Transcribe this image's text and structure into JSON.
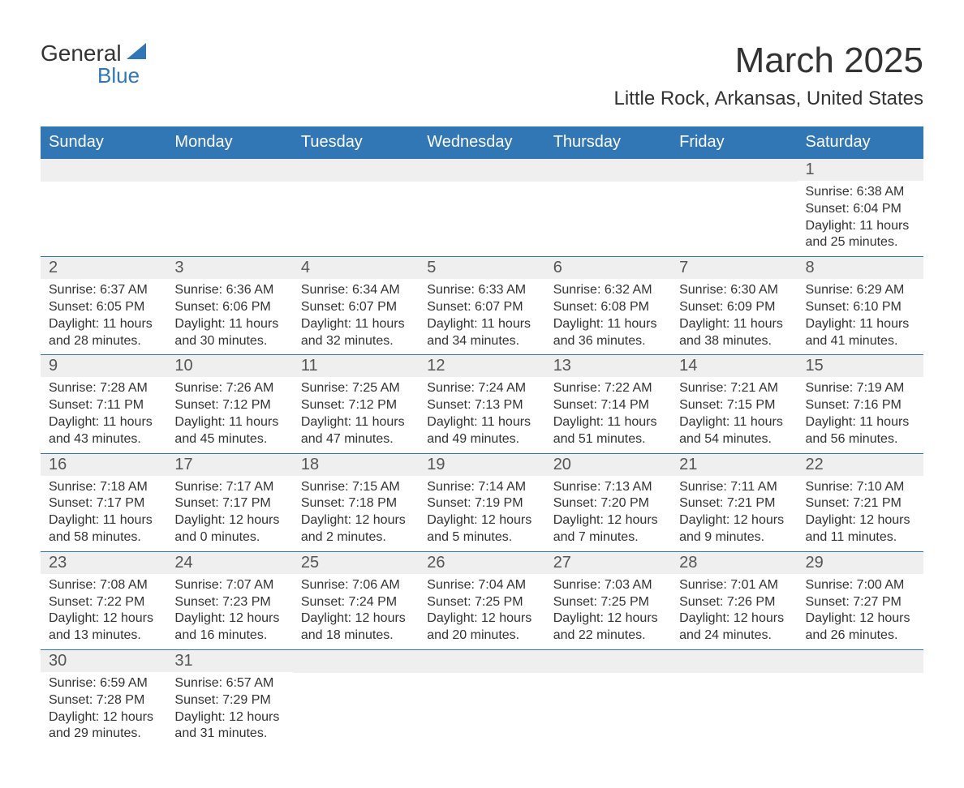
{
  "logo": {
    "text1": "General",
    "text2": "Blue"
  },
  "title": "March 2025",
  "location": "Little Rock, Arkansas, United States",
  "colors": {
    "header_bg": "#3176b5",
    "header_text": "#ffffff",
    "day_number_bg": "#efefef",
    "text_color": "#333333",
    "border_color": "#3176b5"
  },
  "fonts": {
    "title_size": 44,
    "location_size": 24,
    "header_size": 20,
    "day_number_size": 20,
    "detail_size": 16
  },
  "weekdays": [
    "Sunday",
    "Monday",
    "Tuesday",
    "Wednesday",
    "Thursday",
    "Friday",
    "Saturday"
  ],
  "weeks": [
    [
      null,
      null,
      null,
      null,
      null,
      null,
      {
        "day": "1",
        "sunrise": "Sunrise: 6:38 AM",
        "sunset": "Sunset: 6:04 PM",
        "daylight1": "Daylight: 11 hours",
        "daylight2": "and 25 minutes."
      }
    ],
    [
      {
        "day": "2",
        "sunrise": "Sunrise: 6:37 AM",
        "sunset": "Sunset: 6:05 PM",
        "daylight1": "Daylight: 11 hours",
        "daylight2": "and 28 minutes."
      },
      {
        "day": "3",
        "sunrise": "Sunrise: 6:36 AM",
        "sunset": "Sunset: 6:06 PM",
        "daylight1": "Daylight: 11 hours",
        "daylight2": "and 30 minutes."
      },
      {
        "day": "4",
        "sunrise": "Sunrise: 6:34 AM",
        "sunset": "Sunset: 6:07 PM",
        "daylight1": "Daylight: 11 hours",
        "daylight2": "and 32 minutes."
      },
      {
        "day": "5",
        "sunrise": "Sunrise: 6:33 AM",
        "sunset": "Sunset: 6:07 PM",
        "daylight1": "Daylight: 11 hours",
        "daylight2": "and 34 minutes."
      },
      {
        "day": "6",
        "sunrise": "Sunrise: 6:32 AM",
        "sunset": "Sunset: 6:08 PM",
        "daylight1": "Daylight: 11 hours",
        "daylight2": "and 36 minutes."
      },
      {
        "day": "7",
        "sunrise": "Sunrise: 6:30 AM",
        "sunset": "Sunset: 6:09 PM",
        "daylight1": "Daylight: 11 hours",
        "daylight2": "and 38 minutes."
      },
      {
        "day": "8",
        "sunrise": "Sunrise: 6:29 AM",
        "sunset": "Sunset: 6:10 PM",
        "daylight1": "Daylight: 11 hours",
        "daylight2": "and 41 minutes."
      }
    ],
    [
      {
        "day": "9",
        "sunrise": "Sunrise: 7:28 AM",
        "sunset": "Sunset: 7:11 PM",
        "daylight1": "Daylight: 11 hours",
        "daylight2": "and 43 minutes."
      },
      {
        "day": "10",
        "sunrise": "Sunrise: 7:26 AM",
        "sunset": "Sunset: 7:12 PM",
        "daylight1": "Daylight: 11 hours",
        "daylight2": "and 45 minutes."
      },
      {
        "day": "11",
        "sunrise": "Sunrise: 7:25 AM",
        "sunset": "Sunset: 7:12 PM",
        "daylight1": "Daylight: 11 hours",
        "daylight2": "and 47 minutes."
      },
      {
        "day": "12",
        "sunrise": "Sunrise: 7:24 AM",
        "sunset": "Sunset: 7:13 PM",
        "daylight1": "Daylight: 11 hours",
        "daylight2": "and 49 minutes."
      },
      {
        "day": "13",
        "sunrise": "Sunrise: 7:22 AM",
        "sunset": "Sunset: 7:14 PM",
        "daylight1": "Daylight: 11 hours",
        "daylight2": "and 51 minutes."
      },
      {
        "day": "14",
        "sunrise": "Sunrise: 7:21 AM",
        "sunset": "Sunset: 7:15 PM",
        "daylight1": "Daylight: 11 hours",
        "daylight2": "and 54 minutes."
      },
      {
        "day": "15",
        "sunrise": "Sunrise: 7:19 AM",
        "sunset": "Sunset: 7:16 PM",
        "daylight1": "Daylight: 11 hours",
        "daylight2": "and 56 minutes."
      }
    ],
    [
      {
        "day": "16",
        "sunrise": "Sunrise: 7:18 AM",
        "sunset": "Sunset: 7:17 PM",
        "daylight1": "Daylight: 11 hours",
        "daylight2": "and 58 minutes."
      },
      {
        "day": "17",
        "sunrise": "Sunrise: 7:17 AM",
        "sunset": "Sunset: 7:17 PM",
        "daylight1": "Daylight: 12 hours",
        "daylight2": "and 0 minutes."
      },
      {
        "day": "18",
        "sunrise": "Sunrise: 7:15 AM",
        "sunset": "Sunset: 7:18 PM",
        "daylight1": "Daylight: 12 hours",
        "daylight2": "and 2 minutes."
      },
      {
        "day": "19",
        "sunrise": "Sunrise: 7:14 AM",
        "sunset": "Sunset: 7:19 PM",
        "daylight1": "Daylight: 12 hours",
        "daylight2": "and 5 minutes."
      },
      {
        "day": "20",
        "sunrise": "Sunrise: 7:13 AM",
        "sunset": "Sunset: 7:20 PM",
        "daylight1": "Daylight: 12 hours",
        "daylight2": "and 7 minutes."
      },
      {
        "day": "21",
        "sunrise": "Sunrise: 7:11 AM",
        "sunset": "Sunset: 7:21 PM",
        "daylight1": "Daylight: 12 hours",
        "daylight2": "and 9 minutes."
      },
      {
        "day": "22",
        "sunrise": "Sunrise: 7:10 AM",
        "sunset": "Sunset: 7:21 PM",
        "daylight1": "Daylight: 12 hours",
        "daylight2": "and 11 minutes."
      }
    ],
    [
      {
        "day": "23",
        "sunrise": "Sunrise: 7:08 AM",
        "sunset": "Sunset: 7:22 PM",
        "daylight1": "Daylight: 12 hours",
        "daylight2": "and 13 minutes."
      },
      {
        "day": "24",
        "sunrise": "Sunrise: 7:07 AM",
        "sunset": "Sunset: 7:23 PM",
        "daylight1": "Daylight: 12 hours",
        "daylight2": "and 16 minutes."
      },
      {
        "day": "25",
        "sunrise": "Sunrise: 7:06 AM",
        "sunset": "Sunset: 7:24 PM",
        "daylight1": "Daylight: 12 hours",
        "daylight2": "and 18 minutes."
      },
      {
        "day": "26",
        "sunrise": "Sunrise: 7:04 AM",
        "sunset": "Sunset: 7:25 PM",
        "daylight1": "Daylight: 12 hours",
        "daylight2": "and 20 minutes."
      },
      {
        "day": "27",
        "sunrise": "Sunrise: 7:03 AM",
        "sunset": "Sunset: 7:25 PM",
        "daylight1": "Daylight: 12 hours",
        "daylight2": "and 22 minutes."
      },
      {
        "day": "28",
        "sunrise": "Sunrise: 7:01 AM",
        "sunset": "Sunset: 7:26 PM",
        "daylight1": "Daylight: 12 hours",
        "daylight2": "and 24 minutes."
      },
      {
        "day": "29",
        "sunrise": "Sunrise: 7:00 AM",
        "sunset": "Sunset: 7:27 PM",
        "daylight1": "Daylight: 12 hours",
        "daylight2": "and 26 minutes."
      }
    ],
    [
      {
        "day": "30",
        "sunrise": "Sunrise: 6:59 AM",
        "sunset": "Sunset: 7:28 PM",
        "daylight1": "Daylight: 12 hours",
        "daylight2": "and 29 minutes."
      },
      {
        "day": "31",
        "sunrise": "Sunrise: 6:57 AM",
        "sunset": "Sunset: 7:29 PM",
        "daylight1": "Daylight: 12 hours",
        "daylight2": "and 31 minutes."
      },
      null,
      null,
      null,
      null,
      null
    ]
  ]
}
